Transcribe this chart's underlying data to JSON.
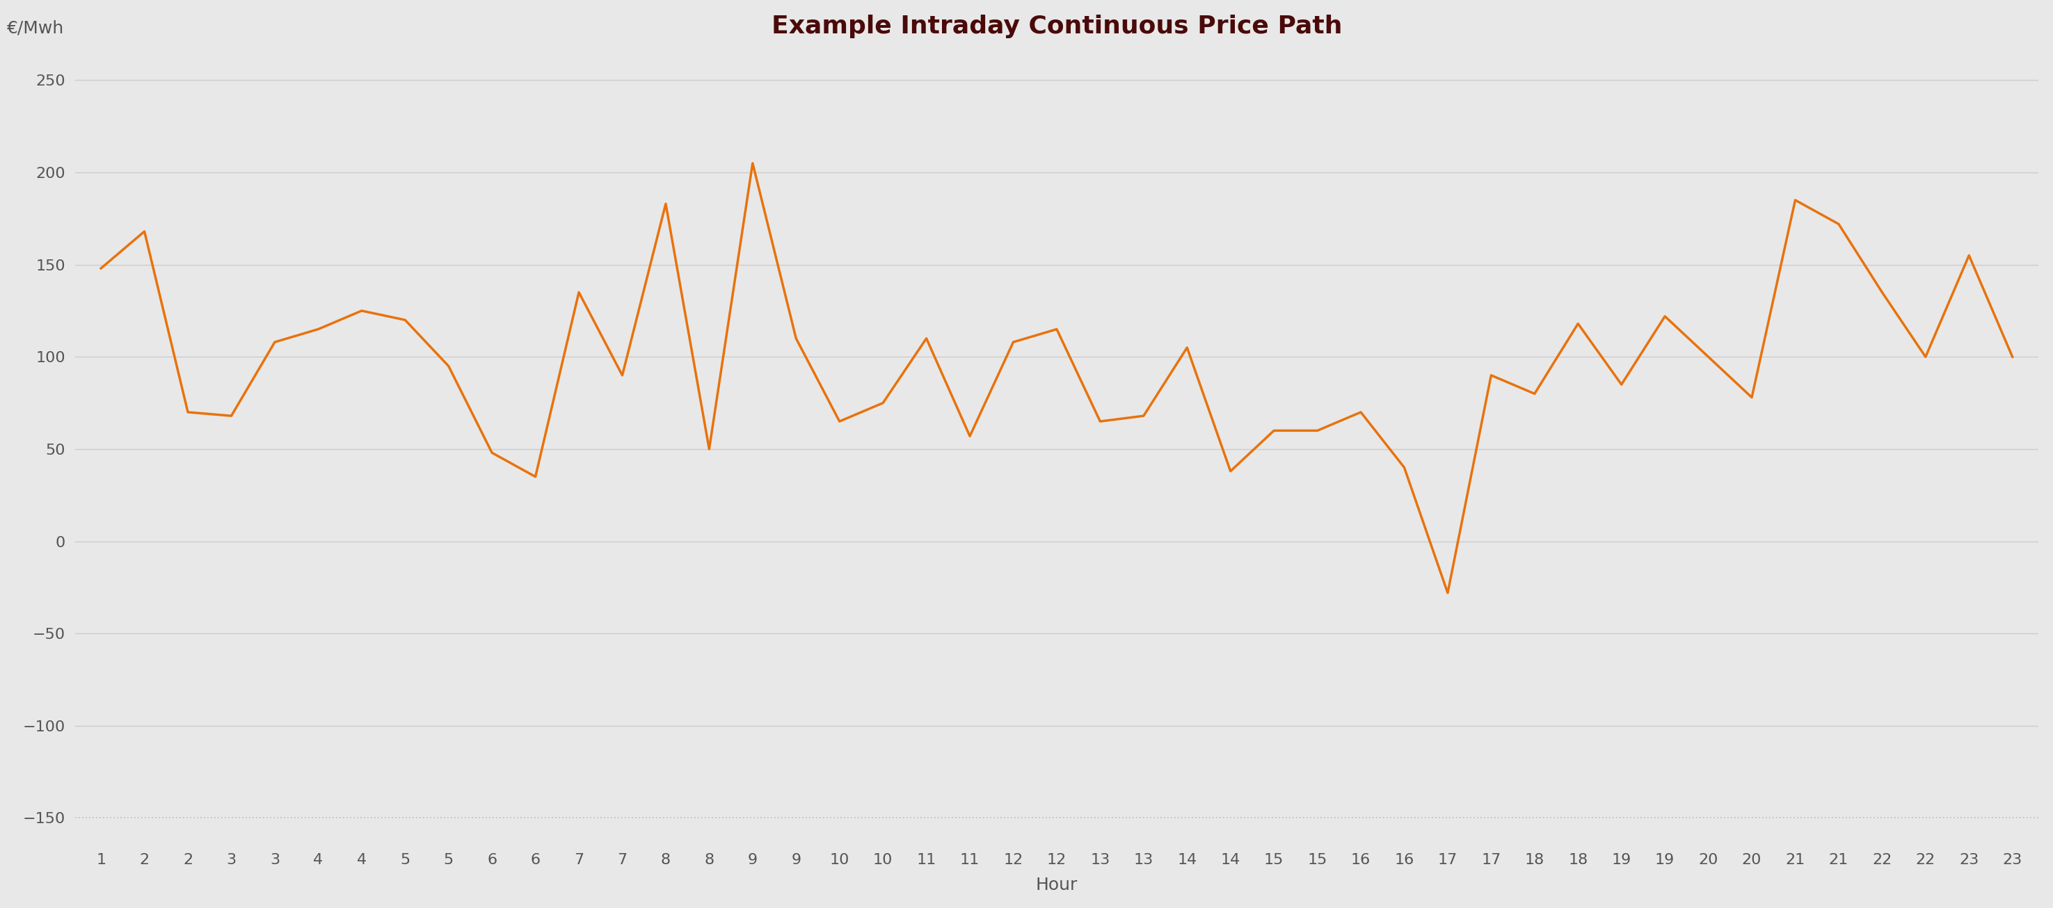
{
  "title": "Example Intraday Continuous Price Path",
  "xlabel": "Hour",
  "ylabel": "€/Mwh",
  "background_color": "#e8e8e8",
  "line_color": "#e8720c",
  "title_color": "#4a0a0a",
  "tick_label_color": "#555555",
  "axis_label_color": "#555555",
  "line_width": 2.5,
  "ylim": [
    -165,
    265
  ],
  "yticks": [
    -150,
    -100,
    -50,
    0,
    50,
    100,
    150,
    200,
    250
  ],
  "grid_color": "#cccccc",
  "dashed_line_y": -150,
  "dashed_line_color": "#bbbbbb",
  "x_values": [
    1,
    1.5,
    2,
    2.5,
    3,
    3.5,
    4,
    4.5,
    5,
    5.5,
    6,
    6.5,
    7,
    7.5,
    8,
    8.5,
    9,
    9.5,
    10,
    10.5,
    11,
    11.5,
    12,
    12.5,
    13,
    13.5,
    14,
    14.5,
    15,
    15.5,
    16,
    16.5,
    17,
    17.5,
    18,
    18.5,
    19,
    19.5,
    20,
    20.5,
    21,
    21.5,
    22,
    22.5,
    23
  ],
  "y_values": [
    148,
    168,
    70,
    68,
    108,
    115,
    125,
    120,
    95,
    48,
    35,
    135,
    90,
    183,
    50,
    205,
    110,
    65,
    75,
    110,
    57,
    108,
    115,
    65,
    68,
    105,
    38,
    60,
    60,
    70,
    40,
    -28,
    90,
    80,
    118,
    85,
    122,
    100,
    78,
    185,
    172,
    135,
    100,
    155,
    100
  ],
  "xtick_labels": [
    "1",
    "2",
    "2",
    "3",
    "3",
    "4",
    "4",
    "5",
    "5",
    "6",
    "6",
    "7",
    "7",
    "8",
    "8",
    "9",
    "9",
    "10",
    "10",
    "11",
    "11",
    "12",
    "12",
    "13",
    "13",
    "14",
    "14",
    "15",
    "15",
    "16",
    "16",
    "17",
    "17",
    "18",
    "18",
    "19",
    "19",
    "20",
    "20",
    "21",
    "21",
    "22",
    "22",
    "23",
    "23"
  ],
  "title_fontsize": 26,
  "axis_label_fontsize": 18,
  "tick_fontsize": 16
}
